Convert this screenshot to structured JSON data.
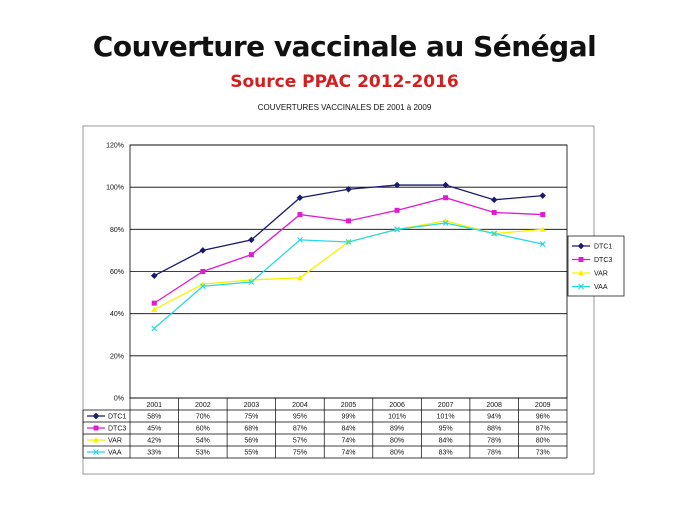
{
  "slide": {
    "title": "Couverture vaccinale au Sénégal",
    "subtitle": "Source PPAC 2012-2016"
  },
  "colors": {
    "title": "#111111",
    "subtitle": "#d21f1f",
    "grid": "#000000",
    "frame": "#808080"
  },
  "chart_data": {
    "type": "line",
    "title": "COUVERTURES VACCINALES  DE 2001 à 2009",
    "xlabel": "",
    "ylabel": "",
    "categories": [
      "2001",
      "2002",
      "2003",
      "2004",
      "2005",
      "2006",
      "2007",
      "2008",
      "2009"
    ],
    "ylim": [
      0,
      120
    ],
    "yticks": [
      "0%",
      "20%",
      "40%",
      "60%",
      "80%",
      "100%",
      "120%"
    ],
    "grid": true,
    "legend": "right",
    "series": [
      {
        "name": "DTC1",
        "color": "#1a1a6e",
        "marker": "diamond",
        "values": [
          58,
          70,
          75,
          95,
          99,
          101,
          101,
          94,
          96
        ],
        "labels": [
          "58%",
          "70%",
          "75%",
          "95%",
          "99%",
          "101%",
          "101%",
          "94%",
          "96%"
        ]
      },
      {
        "name": "DTC3",
        "color": "#e01cd0",
        "marker": "square",
        "values": [
          45,
          60,
          68,
          87,
          84,
          89,
          95,
          88,
          87
        ],
        "labels": [
          "45%",
          "60%",
          "68%",
          "87%",
          "84%",
          "89%",
          "95%",
          "88%",
          "87%"
        ]
      },
      {
        "name": "VAR",
        "color": "#f4f400",
        "marker": "triangle",
        "values": [
          42,
          54,
          56,
          57,
          74,
          80,
          84,
          78,
          80
        ],
        "labels": [
          "42%",
          "54%",
          "56%",
          "57%",
          "74%",
          "80%",
          "84%",
          "78%",
          "80%"
        ]
      },
      {
        "name": "VAA",
        "color": "#29d8e8",
        "marker": "x",
        "values": [
          33,
          53,
          55,
          75,
          74,
          80,
          83,
          78,
          73
        ],
        "labels": [
          "33%",
          "53%",
          "55%",
          "75%",
          "74%",
          "80%",
          "83%",
          "78%",
          "73%"
        ]
      }
    ]
  }
}
